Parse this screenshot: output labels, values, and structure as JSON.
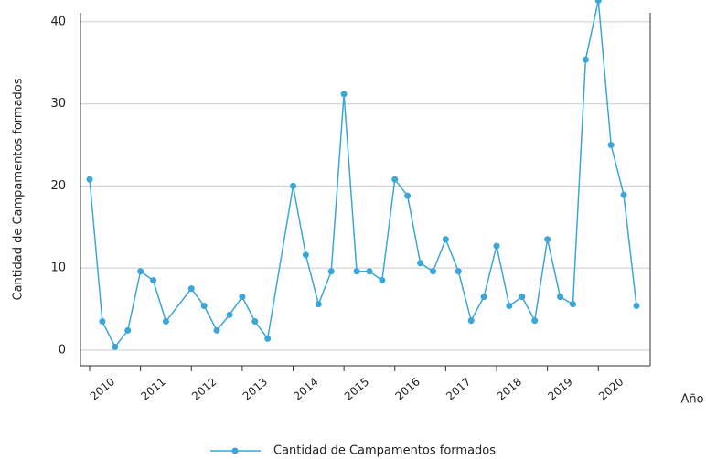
{
  "chart_data": {
    "type": "line",
    "x": [
      2010,
      2010.25,
      2010.5,
      2010.75,
      2011,
      2011.25,
      2011.5,
      2012,
      2012.25,
      2012.5,
      2012.75,
      2013,
      2013.25,
      2013.5,
      2014,
      2014.25,
      2014.5,
      2014.75,
      2015,
      2015.25,
      2015.5,
      2015.75,
      2016,
      2016.25,
      2016.5,
      2016.75,
      2017,
      2017.25,
      2017.5,
      2017.75,
      2018,
      2018.25,
      2018.5,
      2018.75,
      2019,
      2019.25,
      2019.5,
      2019.75,
      2020,
      2020.25,
      2020.5,
      2020.75
    ],
    "series": [
      {
        "name": "Cantidad de Campamentos formados",
        "color": "#3aa6d9",
        "values": [
          20.8,
          3.5,
          0.4,
          2.4,
          9.6,
          8.5,
          3.5,
          7.5,
          5.4,
          2.4,
          4.3,
          6.5,
          3.5,
          1.4,
          20,
          11.6,
          5.6,
          9.6,
          31.2,
          9.6,
          9.6,
          8.5,
          20.8,
          18.8,
          10.6,
          9.6,
          13.5,
          9.6,
          3.6,
          6.5,
          12.7,
          5.4,
          6.5,
          3.6,
          13.5,
          6.5,
          5.6,
          35.4,
          42.6,
          25,
          18.9,
          5.4
        ]
      }
    ],
    "xlabel": "Año",
    "ylabel": "Cantidad de Campamentos formados",
    "xlim": [
      2009.82,
      2021.02
    ],
    "xticks": [
      2010,
      2011,
      2012,
      2013,
      2014,
      2015,
      2016,
      2017,
      2018,
      2019,
      2020
    ],
    "ylim": [
      -1.9,
      41.1
    ],
    "yticks": [
      0,
      10,
      20,
      30,
      40
    ],
    "grid": true,
    "legend": "bottom"
  }
}
